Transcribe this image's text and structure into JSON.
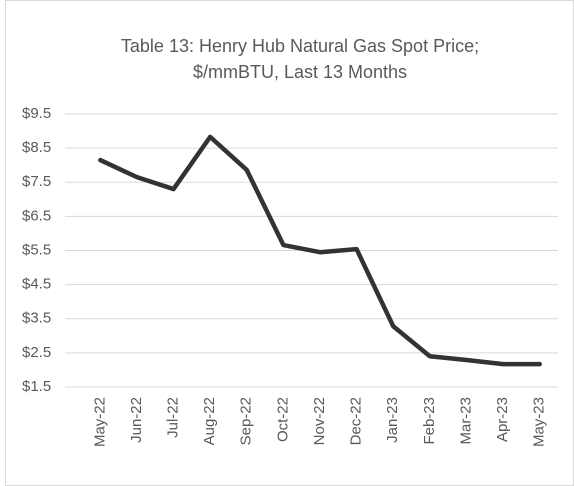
{
  "chart_data": {
    "type": "line",
    "title": [
      "Table 13: Henry Hub Natural Gas Spot Price;",
      "$/mmBTU, Last 13 Months"
    ],
    "categories": [
      "May-22",
      "Jun-22",
      "Jul-22",
      "Aug-22",
      "Sep-22",
      "Oct-22",
      "Nov-22",
      "Dec-22",
      "Jan-23",
      "Feb-23",
      "Mar-23",
      "Apr-23",
      "May-23"
    ],
    "values": [
      8.15,
      7.65,
      7.3,
      8.83,
      7.86,
      5.66,
      5.45,
      5.54,
      3.28,
      2.4,
      2.29,
      2.17,
      2.17
    ],
    "color": "#333333",
    "ylim": [
      1.5,
      9.5
    ],
    "yticks": [
      {
        "value": 1.5,
        "label": "$1.5"
      },
      {
        "value": 2.5,
        "label": "$2.5"
      },
      {
        "value": 3.5,
        "label": "$3.5"
      },
      {
        "value": 4.5,
        "label": "$4.5"
      },
      {
        "value": 5.5,
        "label": "$5.5"
      },
      {
        "value": 6.5,
        "label": "$6.5"
      },
      {
        "value": 7.5,
        "label": "$7.5"
      },
      {
        "value": 8.5,
        "label": "$8.5"
      },
      {
        "value": 9.5,
        "label": "$9.5"
      }
    ],
    "grid": true
  }
}
